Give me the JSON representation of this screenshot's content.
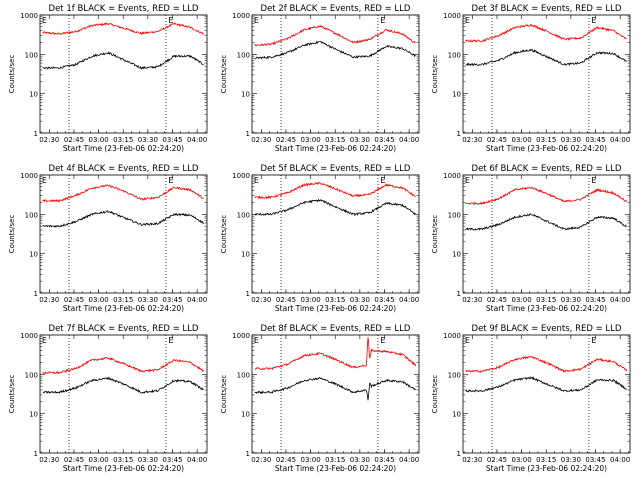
{
  "chart_data": [
    {
      "type": "line",
      "title": "Det 1f BLACK = Events, RED = LLD",
      "xlabel": "Start Time (23-Feb-06 02:24:20)",
      "ylabel": "Counts/sec",
      "xticks": [
        "02:30",
        "02:45",
        "03:00",
        "03:15",
        "03:30",
        "03:45",
        "04:00"
      ],
      "xlim": [
        "02:24:20",
        "04:06"
      ],
      "ylim": [
        1,
        1000
      ],
      "yscale": "log",
      "yticks": [
        "1",
        "10",
        "100",
        "1000"
      ],
      "vlines": [
        "02:42",
        "03:41"
      ],
      "markers": [
        {
          "text": "E",
          "at": "02:27"
        },
        {
          "text": "E",
          "at": "03:44"
        }
      ],
      "series": [
        {
          "color": "#ff0000",
          "x": [
            "02:26",
            "02:36",
            "02:46",
            "02:56",
            "03:06",
            "03:16",
            "03:26",
            "03:36",
            "03:46",
            "03:56",
            "04:04"
          ],
          "y": [
            360,
            330,
            380,
            540,
            600,
            450,
            340,
            380,
            600,
            480,
            330
          ]
        },
        {
          "color": "#000000",
          "x": [
            "02:26",
            "02:36",
            "02:46",
            "02:56",
            "03:06",
            "03:16",
            "03:26",
            "03:36",
            "03:46",
            "03:56",
            "04:04"
          ],
          "y": [
            45,
            45,
            55,
            90,
            110,
            70,
            45,
            48,
            90,
            90,
            55
          ]
        }
      ]
    },
    {
      "type": "line",
      "title": "Det 2f BLACK = Events, RED = LLD",
      "xlabel": "Start Time (23-Feb-06 02:24:20)",
      "ylabel": "Counts/sec",
      "xticks": [
        "02:30",
        "02:45",
        "03:00",
        "03:15",
        "03:30",
        "03:45",
        "04:00"
      ],
      "xlim": [
        "02:24:20",
        "04:06"
      ],
      "ylim": [
        1,
        1000
      ],
      "yscale": "log",
      "yticks": [
        "1",
        "10",
        "100",
        "1000"
      ],
      "vlines": [
        "02:42",
        "03:41"
      ],
      "markers": [
        {
          "text": "E",
          "at": "02:27"
        },
        {
          "text": "E",
          "at": "03:44"
        }
      ],
      "series": [
        {
          "color": "#ff0000",
          "x": [
            "02:26",
            "02:36",
            "02:46",
            "02:56",
            "03:06",
            "03:16",
            "03:26",
            "03:36",
            "03:46",
            "03:56",
            "04:04"
          ],
          "y": [
            170,
            180,
            250,
            420,
            520,
            330,
            200,
            240,
            420,
            330,
            190
          ]
        },
        {
          "color": "#000000",
          "x": [
            "02:26",
            "02:36",
            "02:46",
            "02:56",
            "03:06",
            "03:16",
            "03:26",
            "03:36",
            "03:46",
            "03:56",
            "04:04"
          ],
          "y": [
            80,
            85,
            110,
            170,
            210,
            130,
            85,
            90,
            160,
            140,
            90
          ]
        }
      ]
    },
    {
      "type": "line",
      "title": "Det 3f BLACK = Events, RED = LLD",
      "xlabel": "Start Time (23-Feb-06 02:24:20)",
      "ylabel": "Counts/sec",
      "xticks": [
        "02:30",
        "02:45",
        "03:00",
        "03:15",
        "03:30",
        "03:45",
        "04:00"
      ],
      "xlim": [
        "02:24:20",
        "04:06"
      ],
      "ylim": [
        1,
        1000
      ],
      "yscale": "log",
      "yticks": [
        "1",
        "10",
        "100",
        "1000"
      ],
      "vlines": [
        "02:42",
        "03:41"
      ],
      "markers": [
        {
          "text": "E",
          "at": "02:27"
        },
        {
          "text": "E",
          "at": "03:44"
        }
      ],
      "series": [
        {
          "color": "#ff0000",
          "x": [
            "02:26",
            "02:36",
            "02:46",
            "02:56",
            "03:06",
            "03:16",
            "03:26",
            "03:36",
            "03:46",
            "03:56",
            "04:04"
          ],
          "y": [
            220,
            220,
            300,
            480,
            560,
            380,
            240,
            260,
            480,
            400,
            240
          ]
        },
        {
          "color": "#000000",
          "x": [
            "02:26",
            "02:36",
            "02:46",
            "02:56",
            "03:06",
            "03:16",
            "03:26",
            "03:36",
            "03:46",
            "03:56",
            "04:04"
          ],
          "y": [
            55,
            55,
            70,
            110,
            130,
            85,
            55,
            60,
            110,
            105,
            65
          ]
        }
      ]
    },
    {
      "type": "line",
      "title": "Det 4f BLACK = Events, RED = LLD",
      "xlabel": "Start Time (23-Feb-06 02:24:20)",
      "ylabel": "Counts/sec",
      "xticks": [
        "02:30",
        "02:45",
        "03:00",
        "03:15",
        "03:30",
        "03:45",
        "04:00"
      ],
      "xlim": [
        "02:24:20",
        "04:06"
      ],
      "ylim": [
        1,
        1000
      ],
      "yscale": "log",
      "yticks": [
        "1",
        "10",
        "100",
        "1000"
      ],
      "vlines": [
        "02:42",
        "03:41"
      ],
      "markers": [
        {
          "text": "E",
          "at": "02:27"
        },
        {
          "text": "E",
          "at": "03:44"
        }
      ],
      "series": [
        {
          "color": "#ff0000",
          "x": [
            "02:26",
            "02:36",
            "02:46",
            "02:56",
            "03:06",
            "03:16",
            "03:26",
            "03:36",
            "03:46",
            "03:56",
            "04:04"
          ],
          "y": [
            220,
            220,
            300,
            470,
            540,
            380,
            240,
            270,
            480,
            420,
            250
          ]
        },
        {
          "color": "#000000",
          "x": [
            "02:26",
            "02:36",
            "02:46",
            "02:56",
            "03:06",
            "03:16",
            "03:26",
            "03:36",
            "03:46",
            "03:56",
            "04:04"
          ],
          "y": [
            50,
            50,
            65,
            100,
            120,
            80,
            55,
            58,
            100,
            95,
            60
          ]
        }
      ]
    },
    {
      "type": "line",
      "title": "Det 5f BLACK = Events, RED = LLD",
      "xlabel": "Start Time (23-Feb-06 02:24:20)",
      "ylabel": "Counts/sec",
      "xticks": [
        "02:30",
        "02:45",
        "03:00",
        "03:15",
        "03:30",
        "03:45",
        "04:00"
      ],
      "xlim": [
        "02:24:20",
        "04:06"
      ],
      "ylim": [
        1,
        1000
      ],
      "yscale": "log",
      "yticks": [
        "1",
        "10",
        "100",
        "1000"
      ],
      "vlines": [
        "02:42",
        "03:41"
      ],
      "markers": [
        {
          "text": "E",
          "at": "02:27"
        },
        {
          "text": "E",
          "at": "03:44"
        }
      ],
      "series": [
        {
          "color": "#ff0000",
          "x": [
            "02:26",
            "02:36",
            "02:46",
            "02:56",
            "03:06",
            "03:16",
            "03:26",
            "03:36",
            "03:46",
            "03:56",
            "04:04"
          ],
          "y": [
            270,
            270,
            350,
            560,
            620,
            430,
            290,
            320,
            560,
            470,
            280
          ]
        },
        {
          "color": "#000000",
          "x": [
            "02:26",
            "02:36",
            "02:46",
            "02:56",
            "03:06",
            "03:16",
            "03:26",
            "03:36",
            "03:46",
            "03:56",
            "04:04"
          ],
          "y": [
            100,
            100,
            130,
            200,
            230,
            150,
            100,
            110,
            190,
            170,
            100
          ]
        }
      ]
    },
    {
      "type": "line",
      "title": "Det 6f BLACK = Events, RED = LLD",
      "xlabel": "Start Time (23-Feb-06 02:24:20)",
      "ylabel": "Counts/sec",
      "xticks": [
        "02:30",
        "02:45",
        "03:00",
        "03:15",
        "03:30",
        "03:45",
        "04:00"
      ],
      "xlim": [
        "02:24:20",
        "04:06"
      ],
      "ylim": [
        1,
        1000
      ],
      "yscale": "log",
      "yticks": [
        "1",
        "10",
        "100",
        "1000"
      ],
      "vlines": [
        "02:42",
        "03:41"
      ],
      "markers": [
        {
          "text": "E",
          "at": "02:27"
        },
        {
          "text": "E",
          "at": "03:44"
        }
      ],
      "series": [
        {
          "color": "#ff0000",
          "x": [
            "02:26",
            "02:36",
            "02:46",
            "02:56",
            "03:06",
            "03:16",
            "03:26",
            "03:36",
            "03:46",
            "03:56",
            "04:04"
          ],
          "y": [
            190,
            190,
            250,
            420,
            480,
            330,
            210,
            240,
            420,
            350,
            210
          ]
        },
        {
          "color": "#000000",
          "x": [
            "02:26",
            "02:36",
            "02:46",
            "02:56",
            "03:06",
            "03:16",
            "03:26",
            "03:36",
            "03:46",
            "03:56",
            "04:04"
          ],
          "y": [
            42,
            42,
            55,
            85,
            100,
            65,
            42,
            47,
            85,
            80,
            48
          ]
        }
      ]
    },
    {
      "type": "line",
      "title": "Det 7f BLACK = Events, RED = LLD",
      "xlabel": "Start Time (23-Feb-06 02:24:20)",
      "ylabel": "Counts/sec",
      "xticks": [
        "02:30",
        "02:45",
        "03:00",
        "03:15",
        "03:30",
        "03:45",
        "04:00"
      ],
      "xlim": [
        "02:24:20",
        "04:06"
      ],
      "ylim": [
        1,
        1000
      ],
      "yscale": "log",
      "yticks": [
        "1",
        "10",
        "100",
        "1000"
      ],
      "vlines": [
        "02:42",
        "03:41"
      ],
      "markers": [
        {
          "text": "E",
          "at": "02:27"
        },
        {
          "text": "E",
          "at": "03:44"
        }
      ],
      "series": [
        {
          "color": "#ff0000",
          "x": [
            "02:26",
            "02:36",
            "02:46",
            "02:56",
            "03:06",
            "03:16",
            "03:26",
            "03:36",
            "03:46",
            "03:56",
            "04:04"
          ],
          "y": [
            110,
            110,
            140,
            230,
            260,
            180,
            120,
            130,
            230,
            200,
            120
          ]
        },
        {
          "color": "#000000",
          "x": [
            "02:26",
            "02:36",
            "02:46",
            "02:56",
            "03:06",
            "03:16",
            "03:26",
            "03:36",
            "03:46",
            "03:56",
            "04:04"
          ],
          "y": [
            35,
            35,
            45,
            70,
            80,
            55,
            35,
            38,
            70,
            65,
            40
          ]
        }
      ]
    },
    {
      "type": "line",
      "title": "Det 8f BLACK = Events, RED = LLD",
      "xlabel": "Start Time (23-Feb-06 02:24:20)",
      "ylabel": "Counts/sec",
      "xticks": [
        "02:30",
        "02:45",
        "03:00",
        "03:15",
        "03:30",
        "03:45",
        "04:00"
      ],
      "xlim": [
        "02:24:20",
        "04:06"
      ],
      "ylim": [
        1,
        1000
      ],
      "yscale": "log",
      "yticks": [
        "1",
        "10",
        "100",
        "1000"
      ],
      "vlines": [
        "02:42",
        "03:41"
      ],
      "markers": [
        {
          "text": "E",
          "at": "02:27"
        },
        {
          "text": "E",
          "at": "03:44"
        }
      ],
      "series": [
        {
          "color": "#ff0000",
          "x": [
            "02:26",
            "02:36",
            "02:46",
            "02:56",
            "03:06",
            "03:16",
            "03:26",
            "03:34",
            "03:35",
            "03:36",
            "03:37",
            "03:46",
            "03:56",
            "04:04"
          ],
          "y": [
            140,
            140,
            180,
            300,
            340,
            230,
            150,
            170,
            1000,
            250,
            400,
            380,
            320,
            170
          ]
        },
        {
          "color": "#000000",
          "x": [
            "02:26",
            "02:36",
            "02:46",
            "02:56",
            "03:06",
            "03:16",
            "03:26",
            "03:34",
            "03:35",
            "03:36",
            "03:37",
            "03:46",
            "03:56",
            "04:04"
          ],
          "y": [
            35,
            35,
            45,
            70,
            80,
            55,
            35,
            40,
            22,
            60,
            50,
            70,
            65,
            40
          ]
        }
      ]
    },
    {
      "type": "line",
      "title": "Det 9f BLACK = Events, RED = LLD",
      "xlabel": "Start Time (23-Feb-06 02:24:20)",
      "ylabel": "Counts/sec",
      "xticks": [
        "02:30",
        "02:45",
        "03:00",
        "03:15",
        "03:30",
        "03:45",
        "04:00"
      ],
      "xlim": [
        "02:24:20",
        "04:06"
      ],
      "ylim": [
        1,
        1000
      ],
      "yscale": "log",
      "yticks": [
        "1",
        "10",
        "100",
        "1000"
      ],
      "vlines": [
        "02:42",
        "03:41"
      ],
      "markers": [
        {
          "text": "E",
          "at": "02:27"
        },
        {
          "text": "E",
          "at": "03:44"
        }
      ],
      "series": [
        {
          "color": "#ff0000",
          "x": [
            "02:26",
            "02:36",
            "02:46",
            "02:56",
            "03:06",
            "03:16",
            "03:26",
            "03:36",
            "03:46",
            "03:56",
            "04:04"
          ],
          "y": [
            120,
            120,
            150,
            240,
            280,
            190,
            120,
            135,
            240,
            210,
            125
          ]
        },
        {
          "color": "#000000",
          "x": [
            "02:26",
            "02:36",
            "02:46",
            "02:56",
            "03:06",
            "03:16",
            "03:26",
            "03:36",
            "03:46",
            "03:56",
            "04:04"
          ],
          "y": [
            38,
            38,
            48,
            72,
            82,
            55,
            38,
            40,
            72,
            70,
            42
          ]
        }
      ]
    }
  ]
}
